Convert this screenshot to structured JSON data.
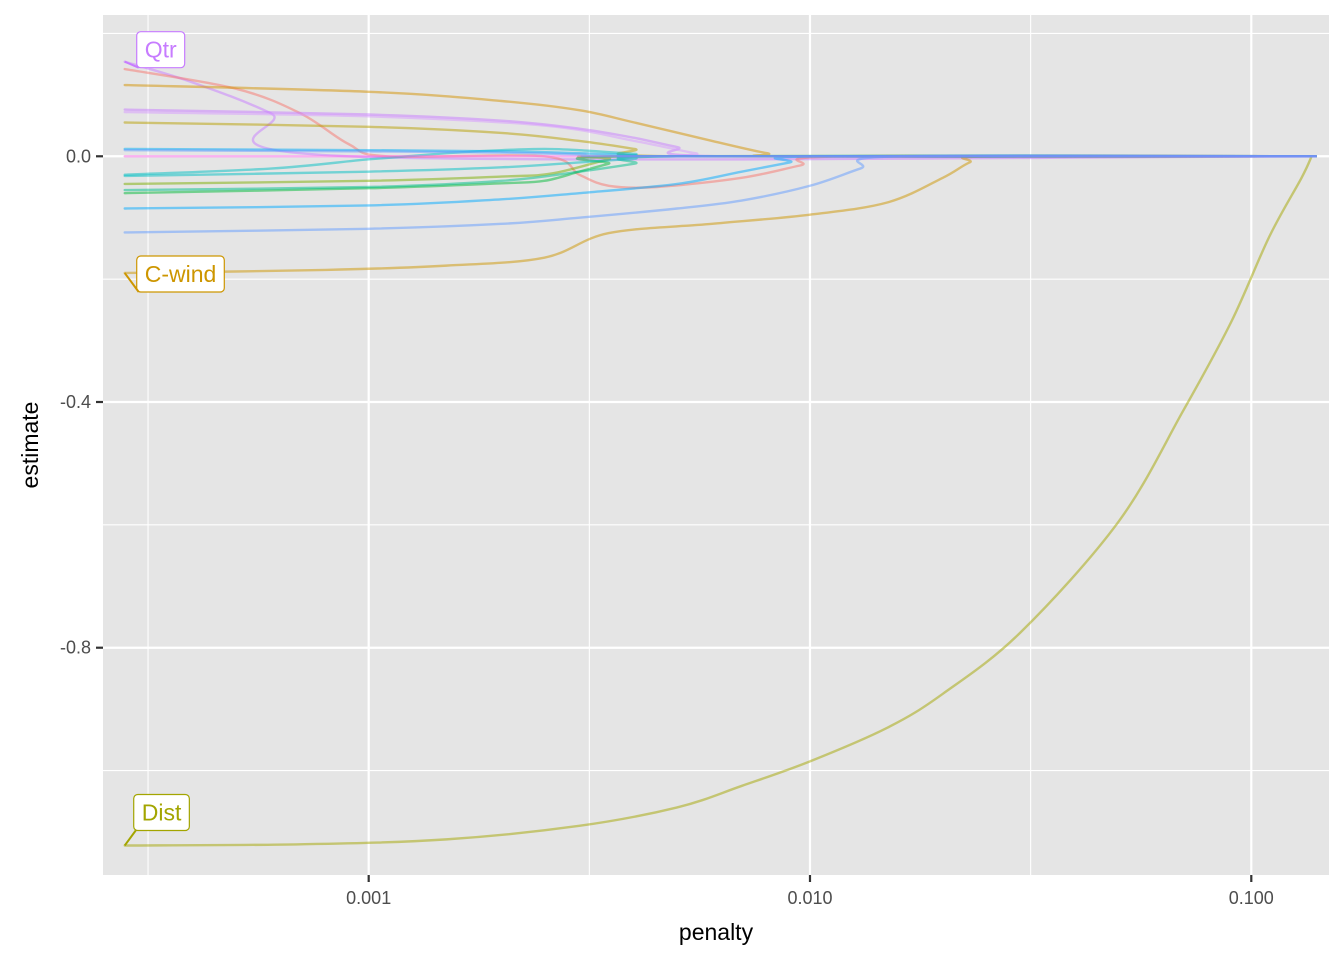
{
  "chart_data": {
    "type": "line",
    "xlabel": "penalty",
    "ylabel": "estimate",
    "x_scale": "log10",
    "xlim": [
      0.00025,
      0.15
    ],
    "ylim": [
      -1.17,
      0.23
    ],
    "x_ticks": [
      0.001,
      0.01,
      0.1
    ],
    "x_tick_labels": [
      "0.001",
      "0.010",
      "0.100"
    ],
    "y_ticks": [
      0.0,
      -0.4,
      -0.8
    ],
    "y_tick_labels": [
      "0.0",
      "-0.4",
      "-0.8"
    ],
    "grid": true,
    "legend": "none",
    "panel_background": "#e5e5e5",
    "series": [
      {
        "name": "Qtr",
        "color": "#c77cff",
        "labeled": true,
        "points": [
          [
            0.00028,
            0.154
          ],
          [
            0.0004,
            0.12
          ],
          [
            0.0006,
            0.07
          ],
          [
            0.0009,
            0.0
          ],
          [
            0.14,
            0.0
          ]
        ]
      },
      {
        "color": "#f8766d",
        "points": [
          [
            0.00028,
            0.142
          ],
          [
            0.0005,
            0.11
          ],
          [
            0.0007,
            0.07
          ],
          [
            0.0009,
            0.02
          ],
          [
            0.0011,
            0.0
          ],
          [
            0.0025,
            0.0
          ],
          [
            0.003,
            -0.03
          ],
          [
            0.0035,
            -0.048
          ],
          [
            0.0045,
            -0.05
          ],
          [
            0.007,
            -0.035
          ],
          [
            0.0095,
            -0.015
          ],
          [
            0.012,
            0.0
          ],
          [
            0.14,
            0.0
          ]
        ]
      },
      {
        "color": "#c77cff",
        "points": [
          [
            0.00028,
            0.076
          ],
          [
            0.001,
            0.068
          ],
          [
            0.002,
            0.058
          ],
          [
            0.003,
            0.045
          ],
          [
            0.004,
            0.03
          ],
          [
            0.005,
            0.015
          ],
          [
            0.0065,
            0.0
          ],
          [
            0.14,
            0.0
          ]
        ]
      },
      {
        "color": "#d89aff",
        "points": [
          [
            0.00028,
            0.072
          ],
          [
            0.001,
            0.065
          ],
          [
            0.0025,
            0.05
          ],
          [
            0.004,
            0.025
          ],
          [
            0.0055,
            0.005
          ],
          [
            0.0065,
            0.0
          ],
          [
            0.14,
            0.0
          ]
        ]
      },
      {
        "name": "C-wind",
        "color": "#cd9600",
        "labeled": true,
        "points": [
          [
            0.00028,
            -0.19
          ],
          [
            0.0008,
            -0.185
          ],
          [
            0.0015,
            -0.178
          ],
          [
            0.0025,
            -0.165
          ],
          [
            0.0035,
            -0.125
          ],
          [
            0.006,
            -0.11
          ],
          [
            0.01,
            -0.095
          ],
          [
            0.015,
            -0.075
          ],
          [
            0.02,
            -0.035
          ],
          [
            0.023,
            -0.01
          ],
          [
            0.026,
            0.0
          ],
          [
            0.14,
            0.0
          ]
        ]
      },
      {
        "color": "#d39200",
        "points": [
          [
            0.00028,
            0.116
          ],
          [
            0.001,
            0.105
          ],
          [
            0.002,
            0.09
          ],
          [
            0.003,
            0.075
          ],
          [
            0.004,
            0.055
          ],
          [
            0.006,
            0.025
          ],
          [
            0.008,
            0.005
          ],
          [
            0.0095,
            0.0
          ],
          [
            0.14,
            0.0
          ]
        ]
      },
      {
        "color": "#b79f00",
        "points": [
          [
            0.00028,
            0.055
          ],
          [
            0.001,
            0.048
          ],
          [
            0.002,
            0.038
          ],
          [
            0.003,
            0.025
          ],
          [
            0.004,
            0.012
          ],
          [
            0.005,
            0.0
          ],
          [
            0.14,
            0.0
          ]
        ]
      },
      {
        "name": "Dist",
        "color": "#a3a500",
        "labeled": true,
        "points": [
          [
            0.00028,
            -1.122
          ],
          [
            0.0007,
            -1.12
          ],
          [
            0.0015,
            -1.112
          ],
          [
            0.003,
            -1.09
          ],
          [
            0.005,
            -1.06
          ],
          [
            0.007,
            -1.025
          ],
          [
            0.01,
            -0.985
          ],
          [
            0.015,
            -0.93
          ],
          [
            0.02,
            -0.875
          ],
          [
            0.03,
            -0.775
          ],
          [
            0.05,
            -0.595
          ],
          [
            0.07,
            -0.415
          ],
          [
            0.09,
            -0.27
          ],
          [
            0.11,
            -0.13
          ],
          [
            0.13,
            -0.035
          ],
          [
            0.137,
            0.0
          ]
        ]
      },
      {
        "color": "#7cae00",
        "points": [
          [
            0.00028,
            -0.045
          ],
          [
            0.001,
            -0.04
          ],
          [
            0.002,
            -0.033
          ],
          [
            0.0026,
            -0.028
          ],
          [
            0.0035,
            -0.005
          ],
          [
            0.004,
            0.0
          ],
          [
            0.14,
            0.0
          ]
        ]
      },
      {
        "color": "#00ba38",
        "points": [
          [
            0.00028,
            -0.06
          ],
          [
            0.001,
            -0.052
          ],
          [
            0.002,
            -0.044
          ],
          [
            0.0025,
            -0.04
          ],
          [
            0.003,
            -0.025
          ],
          [
            0.0035,
            -0.012
          ],
          [
            0.004,
            0.0
          ],
          [
            0.14,
            0.0
          ]
        ]
      },
      {
        "color": "#00c08b",
        "points": [
          [
            0.00028,
            -0.055
          ],
          [
            0.001,
            -0.05
          ],
          [
            0.002,
            -0.04
          ],
          [
            0.003,
            -0.025
          ],
          [
            0.004,
            -0.012
          ],
          [
            0.005,
            0.0
          ],
          [
            0.14,
            0.0
          ]
        ]
      },
      {
        "color": "#00bfc4",
        "points": [
          [
            0.00028,
            -0.032
          ],
          [
            0.001,
            -0.025
          ],
          [
            0.002,
            -0.018
          ],
          [
            0.003,
            -0.01
          ],
          [
            0.004,
            -0.004
          ],
          [
            0.005,
            0.0
          ],
          [
            0.14,
            0.0
          ]
        ]
      },
      {
        "color": "#00bfc4",
        "points": [
          [
            0.00028,
            -0.03
          ],
          [
            0.0006,
            -0.02
          ],
          [
            0.001,
            -0.005
          ],
          [
            0.0015,
            0.005
          ],
          [
            0.002,
            0.01
          ],
          [
            0.0025,
            0.012
          ],
          [
            0.003,
            0.01
          ],
          [
            0.004,
            0.004
          ],
          [
            0.005,
            0.0
          ],
          [
            0.14,
            0.0
          ]
        ]
      },
      {
        "color": "#00a9ff",
        "points": [
          [
            0.00028,
            -0.085
          ],
          [
            0.001,
            -0.08
          ],
          [
            0.002,
            -0.07
          ],
          [
            0.003,
            -0.06
          ],
          [
            0.005,
            -0.045
          ],
          [
            0.007,
            -0.025
          ],
          [
            0.009,
            -0.01
          ],
          [
            0.0105,
            0.0
          ],
          [
            0.14,
            0.0
          ]
        ]
      },
      {
        "color": "#619cff",
        "points": [
          [
            0.00028,
            -0.124
          ],
          [
            0.001,
            -0.118
          ],
          [
            0.002,
            -0.11
          ],
          [
            0.003,
            -0.1
          ],
          [
            0.005,
            -0.085
          ],
          [
            0.007,
            -0.072
          ],
          [
            0.01,
            -0.048
          ],
          [
            0.013,
            -0.02
          ],
          [
            0.016,
            0.0
          ],
          [
            0.14,
            0.0
          ]
        ]
      },
      {
        "color": "#00b0f6",
        "points": [
          [
            0.00028,
            0.012
          ],
          [
            0.001,
            0.01
          ],
          [
            0.002,
            0.008
          ],
          [
            0.003,
            0.005
          ],
          [
            0.004,
            0.002
          ],
          [
            0.005,
            0.0
          ],
          [
            0.14,
            0.0
          ]
        ]
      },
      {
        "color": "#f564e3",
        "points": [
          [
            0.00028,
            0.0
          ],
          [
            0.14,
            0.0
          ]
        ]
      },
      {
        "color": "#619cff",
        "points": [
          [
            0.00028,
            0.01
          ],
          [
            0.001,
            0.008
          ],
          [
            0.002,
            0.006
          ],
          [
            0.003,
            0.003
          ],
          [
            0.0045,
            0.0
          ],
          [
            0.14,
            0.0
          ]
        ]
      }
    ],
    "annotations": [
      {
        "text": "Qtr",
        "series": "Qtr",
        "color": "#c77cff"
      },
      {
        "text": "C-wind",
        "series": "C-wind",
        "color": "#cd9600"
      },
      {
        "text": "Dist",
        "series": "Dist",
        "color": "#a3a500"
      }
    ]
  }
}
